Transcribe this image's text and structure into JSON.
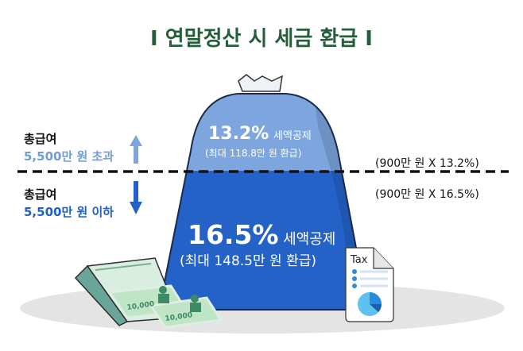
{
  "title": "I 연말정산 시 세금 환급 I",
  "upper": {
    "label": "총급여",
    "condition": "5,500만 원 초과",
    "rate": "13.2%",
    "deduction": "세액공제",
    "max_refund": "(최대 118.8만 원 환급)",
    "formula": "(900만 원 X 13.2%)",
    "arrow": "arrow-up-icon"
  },
  "lower": {
    "label": "총급여",
    "condition": "5,500만 원 이하",
    "rate": "16.5%",
    "deduction": "세액공제",
    "max_refund": "(최대 148.5만 원 환급)",
    "formula": "(900만 원 X 16.5%)",
    "arrow": "arrow-down-icon"
  },
  "illustration": {
    "banknote_label": "10,000",
    "document_label": "Tax"
  },
  "colors": {
    "title": "#255e3a",
    "upper_blue": "#7ea6de",
    "lower_blue": "#2462c8",
    "upper_text": "#6f9bd8",
    "lower_text": "#1f5fc6"
  }
}
